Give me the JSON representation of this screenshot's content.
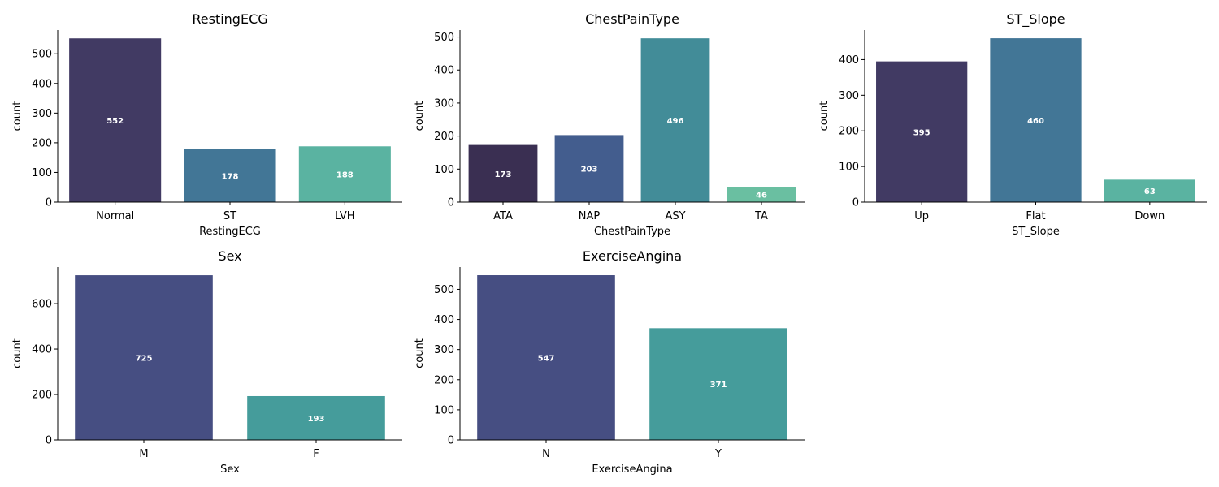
{
  "chart_data": [
    {
      "type": "bar",
      "title": "RestingECG",
      "xlabel": "RestingECG",
      "ylabel": "count",
      "categories": [
        "Normal",
        "ST",
        "LVH"
      ],
      "values": [
        552,
        178,
        188
      ],
      "bar_labels": [
        "552",
        "178",
        "188"
      ],
      "colors": [
        "#413a63",
        "#427696",
        "#5ab3a1"
      ],
      "ylim": [
        0,
        580
      ],
      "yticks": [
        0,
        100,
        200,
        300,
        400,
        500
      ],
      "grid": false
    },
    {
      "type": "bar",
      "title": "ChestPainType",
      "xlabel": "ChestPainType",
      "ylabel": "count",
      "categories": [
        "ATA",
        "NAP",
        "ASY",
        "TA"
      ],
      "values": [
        173,
        203,
        496,
        46
      ],
      "bar_labels": [
        "173",
        "203",
        "496",
        "46"
      ],
      "colors": [
        "#3a2f52",
        "#435d8e",
        "#428c98",
        "#6abfa1"
      ],
      "ylim": [
        0,
        521
      ],
      "yticks": [
        0,
        100,
        200,
        300,
        400,
        500
      ],
      "grid": false
    },
    {
      "type": "bar",
      "title": "ST_Slope",
      "xlabel": "ST_Slope",
      "ylabel": "count",
      "categories": [
        "Up",
        "Flat",
        "Down"
      ],
      "values": [
        395,
        460,
        63
      ],
      "bar_labels": [
        "395",
        "460",
        "63"
      ],
      "colors": [
        "#413a63",
        "#427696",
        "#5ab3a1"
      ],
      "ylim": [
        0,
        483
      ],
      "yticks": [
        0,
        100,
        200,
        300,
        400
      ],
      "grid": false
    },
    {
      "type": "bar",
      "title": "Sex",
      "xlabel": "Sex",
      "ylabel": "count",
      "categories": [
        "M",
        "F"
      ],
      "values": [
        725,
        193
      ],
      "bar_labels": [
        "725",
        "193"
      ],
      "colors": [
        "#464e82",
        "#459c9b"
      ],
      "ylim": [
        0,
        761
      ],
      "yticks": [
        0,
        200,
        400,
        600
      ],
      "grid": false
    },
    {
      "type": "bar",
      "title": "ExerciseAngina",
      "xlabel": "ExerciseAngina",
      "ylabel": "count",
      "categories": [
        "N",
        "Y"
      ],
      "values": [
        547,
        371
      ],
      "bar_labels": [
        "547",
        "371"
      ],
      "colors": [
        "#464e82",
        "#459c9b"
      ],
      "ylim": [
        0,
        574
      ],
      "yticks": [
        0,
        100,
        200,
        300,
        400,
        500
      ],
      "grid": false
    }
  ]
}
